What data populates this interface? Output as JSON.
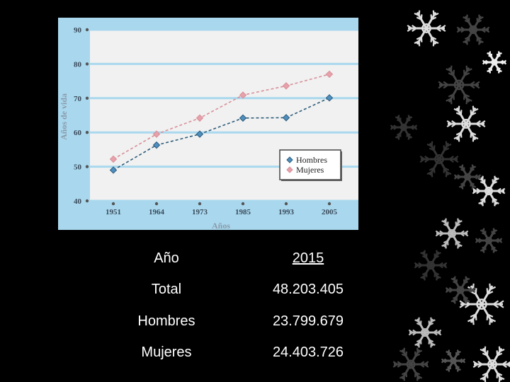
{
  "chart_data": {
    "type": "line",
    "x": [
      "1951",
      "1964",
      "1973",
      "1985",
      "1993",
      "2005"
    ],
    "series": [
      {
        "name": "Hombres",
        "values": [
          49,
          56.3,
          59.5,
          64.2,
          64.3,
          70.1
        ],
        "color": "#2e5d7a",
        "marker": "#4f8fc0"
      },
      {
        "name": "Mujeres",
        "values": [
          52.2,
          59.5,
          64.2,
          70.9,
          73.6,
          77
        ],
        "color": "#d88f99",
        "marker": "#e7a1ab"
      }
    ],
    "xlabel": "Años",
    "ylabel": "Años de vida",
    "ylim": [
      40,
      90
    ],
    "yticks": [
      40,
      50,
      60,
      70,
      80,
      90
    ],
    "grid": true,
    "legend": "bottom-right"
  },
  "table": {
    "header": {
      "label": "Año",
      "value": "2015"
    },
    "rows": [
      {
        "label": "Total",
        "value": "48.203.405"
      },
      {
        "label": "Hombres",
        "value": "23.799.679"
      },
      {
        "label": "Mujeres",
        "value": "24.403.726"
      }
    ]
  },
  "colors": {
    "background": "#000000",
    "chart_panel": "#a9d8ee",
    "plot_area": "#f1f1f1",
    "text": "#ffffff"
  },
  "decorations": {
    "icon": "snowflake-icon"
  }
}
